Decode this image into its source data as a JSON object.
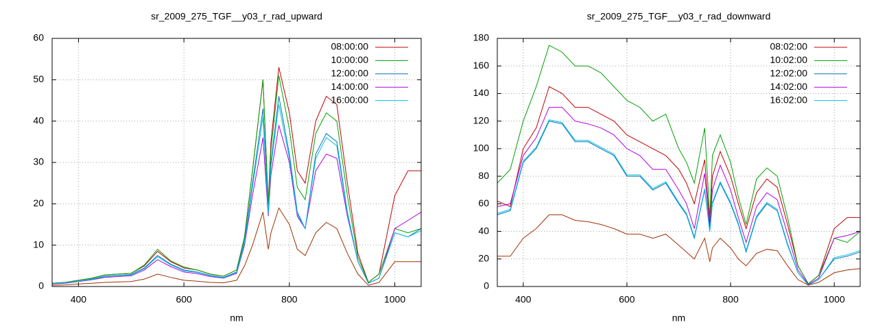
{
  "chart_data": [
    {
      "type": "line",
      "title": "sr_2009_275_TGF__y03_r_rad_upward",
      "x_label": "nm",
      "x": [
        350,
        375,
        400,
        425,
        450,
        475,
        500,
        525,
        550,
        575,
        600,
        625,
        650,
        675,
        700,
        715,
        730,
        750,
        760,
        765,
        780,
        800,
        815,
        830,
        850,
        870,
        890,
        910,
        930,
        950,
        970,
        1000,
        1025,
        1050
      ],
      "xlim": [
        350,
        1050
      ],
      "xticks": [
        400,
        600,
        800,
        1000
      ],
      "ylim": [
        0,
        60
      ],
      "yticks": [
        0,
        10,
        20,
        30,
        40,
        50,
        60
      ],
      "grid": true,
      "legend": "top-right",
      "series": [
        {
          "name": "08:00:00",
          "color": "#c00000",
          "values": [
            0.8,
            1,
            1.5,
            2,
            2.8,
            3,
            3.2,
            5,
            8.5,
            6,
            4.5,
            4,
            3,
            2.5,
            4,
            12,
            28,
            50,
            20,
            35,
            53,
            42,
            28,
            25,
            40,
            46,
            44,
            25,
            8,
            1,
            3,
            22,
            28,
            28
          ]
        },
        {
          "name": "10:00:00",
          "color": "#00a000",
          "values": [
            0.8,
            1,
            1.5,
            2,
            2.8,
            3,
            3.2,
            5.2,
            9,
            6.2,
            4.7,
            4,
            3,
            2.5,
            4,
            12,
            28,
            50,
            20,
            33,
            51,
            38,
            24,
            21,
            37,
            42,
            40,
            22,
            7,
            1,
            3,
            14,
            13,
            14
          ]
        },
        {
          "name": "12:00:00",
          "color": "#0070c0",
          "values": [
            0.7,
            0.9,
            1.3,
            1.8,
            2.5,
            2.7,
            2.9,
            4.5,
            7.5,
            5.4,
            4,
            3.5,
            2.7,
            2.2,
            3.5,
            11,
            25,
            43,
            18,
            30,
            46,
            32,
            18,
            14,
            32,
            37,
            35,
            18,
            6,
            0.8,
            2,
            13,
            12,
            14
          ]
        },
        {
          "name": "14:00:00",
          "color": "#b000e0",
          "values": [
            0.6,
            0.8,
            1.2,
            1.6,
            2.2,
            2.4,
            2.6,
            4,
            6.5,
            4.8,
            3.5,
            3.1,
            2.4,
            2,
            3.2,
            10,
            22,
            36,
            17,
            27,
            39,
            30,
            17,
            14,
            28,
            32,
            31,
            17,
            6,
            0.8,
            2,
            14,
            16,
            18
          ]
        },
        {
          "name": "16:00:00",
          "color": "#00c0e0",
          "values": [
            0.7,
            0.9,
            1.3,
            1.7,
            2.4,
            2.6,
            2.8,
            4.3,
            7.2,
            5.2,
            3.8,
            3.4,
            2.6,
            2.1,
            3.4,
            10.5,
            24,
            41,
            17.5,
            29,
            44,
            31,
            17.5,
            14,
            31,
            36,
            34,
            17.5,
            6,
            0.8,
            2,
            13,
            12,
            13.5
          ]
        },
        {
          "color": "#a03000",
          "values": [
            0.3,
            0.4,
            0.6,
            0.8,
            1,
            1.1,
            1.2,
            1.8,
            3,
            2.2,
            1.5,
            1.3,
            1,
            0.9,
            1.5,
            5,
            10,
            18,
            9,
            13,
            19,
            15,
            9,
            7.5,
            13,
            15.5,
            14,
            8,
            3,
            0.3,
            1,
            6,
            6,
            6
          ]
        }
      ]
    },
    {
      "type": "line",
      "title": "sr_2009_275_TGF__y03_r_rad_downward",
      "x_label": "nm",
      "x": [
        350,
        375,
        400,
        425,
        450,
        475,
        500,
        525,
        550,
        575,
        600,
        625,
        650,
        675,
        700,
        715,
        730,
        750,
        760,
        765,
        780,
        800,
        815,
        830,
        850,
        870,
        890,
        910,
        930,
        950,
        970,
        1000,
        1025,
        1050
      ],
      "xlim": [
        350,
        1050
      ],
      "xticks": [
        400,
        600,
        800,
        1000
      ],
      "ylim": [
        0,
        180
      ],
      "yticks": [
        0,
        20,
        40,
        60,
        80,
        100,
        120,
        140,
        160,
        180
      ],
      "grid": true,
      "legend": "top-right",
      "series": [
        {
          "name": "08:02:00",
          "color": "#c00000",
          "values": [
            62,
            58,
            100,
            115,
            145,
            140,
            130,
            130,
            125,
            120,
            110,
            105,
            100,
            95,
            85,
            75,
            60,
            92,
            45,
            80,
            98,
            80,
            60,
            42,
            68,
            78,
            72,
            45,
            15,
            2,
            8,
            42,
            50,
            50
          ]
        },
        {
          "name": "10:02:00",
          "color": "#00a000",
          "values": [
            75,
            85,
            120,
            145,
            175,
            170,
            160,
            160,
            155,
            145,
            135,
            130,
            120,
            125,
            100,
            90,
            75,
            115,
            50,
            95,
            110,
            90,
            65,
            45,
            78,
            86,
            80,
            50,
            15,
            2,
            8,
            35,
            32,
            40
          ]
        },
        {
          "name": "12:02:00",
          "color": "#0070c0",
          "values": [
            52,
            55,
            90,
            100,
            120,
            118,
            105,
            105,
            100,
            95,
            80,
            80,
            70,
            75,
            60,
            52,
            35,
            70,
            40,
            60,
            75,
            60,
            45,
            25,
            50,
            60,
            55,
            30,
            10,
            1,
            5,
            20,
            22,
            25
          ]
        },
        {
          "name": "14:02:00",
          "color": "#b000e0",
          "values": [
            58,
            60,
            95,
            108,
            130,
            130,
            120,
            118,
            115,
            110,
            100,
            95,
            85,
            85,
            70,
            60,
            42,
            82,
            42,
            70,
            88,
            70,
            50,
            32,
            58,
            68,
            63,
            38,
            12,
            1.5,
            6,
            35,
            37,
            40
          ]
        },
        {
          "name": "16:02:00",
          "color": "#00c0e0",
          "values": [
            53,
            56,
            91,
            101,
            121,
            119,
            106,
            106,
            101,
            96,
            81,
            81,
            71,
            76,
            61,
            53,
            36,
            71,
            40,
            61,
            76,
            61,
            46,
            26,
            51,
            61,
            56,
            31,
            10,
            1,
            5,
            21,
            23,
            26
          ]
        },
        {
          "color": "#a03000",
          "values": [
            22,
            22,
            35,
            42,
            52,
            52,
            48,
            47,
            45,
            42,
            38,
            38,
            35,
            38,
            30,
            25,
            20,
            35,
            18,
            28,
            35,
            28,
            20,
            15,
            24,
            27,
            26,
            15,
            5,
            1,
            3,
            10,
            12,
            13
          ]
        }
      ]
    }
  ]
}
